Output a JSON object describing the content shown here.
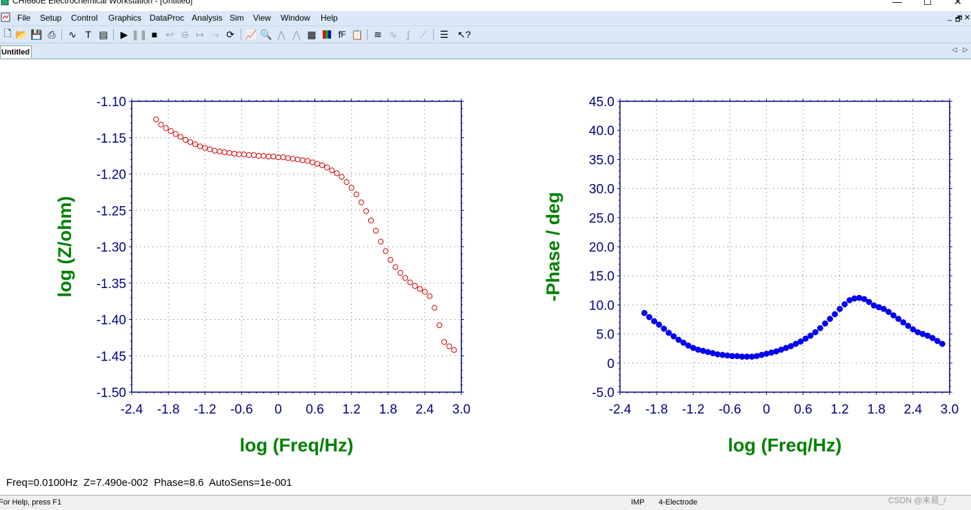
{
  "app": {
    "window_title": "CHI660E Electrochemical Workstation - [Untitled]",
    "minimize_glyph": "—",
    "maximize_glyph": "☐",
    "close_glyph": "✕",
    "mdi_min_glyph": "_",
    "mdi_restore_glyph": "🗗",
    "mdi_close_glyph": "✕"
  },
  "menu": [
    "File",
    "Setup",
    "Control",
    "Graphics",
    "DataProc",
    "Analysis",
    "Sim",
    "View",
    "Window",
    "Help"
  ],
  "toolbar_icons": [
    "new-file-icon",
    "open-file-icon",
    "save-icon",
    "print-icon",
    "technique-icon",
    "text-icon",
    "parameters-icon",
    "run-icon",
    "pause-icon",
    "stop-icon",
    "reverse-icon",
    "ir-comp-icon",
    "filter-icon",
    "cell-icon",
    "rotate-icon",
    "graph-icon",
    "zoom-icon",
    "peak-icon",
    "overlay-icon",
    "color-icon",
    "font-icon",
    "copy-icon",
    "smooth-icon",
    "derivative-icon",
    "integrate-icon",
    "convolution-icon",
    "list-icon",
    "help-pointer-icon"
  ],
  "tab": {
    "label": "Untitled",
    "prev_glyph": "◁",
    "next_glyph": "▷"
  },
  "colors": {
    "menu_bg": "#dbe8f7",
    "axis_color": "#000080",
    "label_green": "#008000",
    "series_red": "#cc0000",
    "series_blue": "#0000ee"
  },
  "status_line": "Freq=0.0100Hz  Z=7.490e-002  Phase=8.6  AutoSens=1e-001",
  "statusbar": {
    "help": "For Help, press F1",
    "mode": "IMP",
    "electrode": "4-Electrode",
    "watermark": "CSDN @末易_/"
  },
  "chart_data": [
    {
      "type": "scatter",
      "xlabel": "log (Freq/Hz)",
      "ylabel": "log (Z/ohm)",
      "xlim": [
        -2.4,
        3.0
      ],
      "ylim": [
        -1.5,
        -1.1
      ],
      "xticks": [
        "-2.4",
        "-1.8",
        "-1.2",
        "-0.6",
        "0",
        "0.6",
        "1.2",
        "1.8",
        "2.4",
        "3.0"
      ],
      "yticks": [
        "-1.10",
        "-1.15",
        "-1.20",
        "-1.25",
        "-1.30",
        "-1.35",
        "-1.40",
        "-1.45",
        "-1.50"
      ],
      "grid": true,
      "marker": "open-circle",
      "color": "#cc0000",
      "x": [
        -2.0,
        -1.92,
        -1.84,
        -1.76,
        -1.68,
        -1.6,
        -1.52,
        -1.44,
        -1.36,
        -1.28,
        -1.2,
        -1.12,
        -1.04,
        -0.96,
        -0.88,
        -0.8,
        -0.72,
        -0.64,
        -0.56,
        -0.48,
        -0.4,
        -0.32,
        -0.24,
        -0.16,
        -0.08,
        0.0,
        0.08,
        0.16,
        0.24,
        0.32,
        0.4,
        0.48,
        0.56,
        0.64,
        0.72,
        0.8,
        0.88,
        0.96,
        1.04,
        1.12,
        1.2,
        1.28,
        1.36,
        1.44,
        1.52,
        1.6,
        1.68,
        1.76,
        1.84,
        1.92,
        2.0,
        2.08,
        2.16,
        2.24,
        2.32,
        2.4,
        2.48,
        2.56,
        2.64,
        2.72,
        2.8,
        2.88
      ],
      "y": [
        -1.125,
        -1.132,
        -1.137,
        -1.141,
        -1.145,
        -1.149,
        -1.153,
        -1.156,
        -1.159,
        -1.162,
        -1.164,
        -1.166,
        -1.168,
        -1.169,
        -1.17,
        -1.171,
        -1.172,
        -1.173,
        -1.173,
        -1.174,
        -1.174,
        -1.175,
        -1.175,
        -1.176,
        -1.176,
        -1.177,
        -1.177,
        -1.178,
        -1.179,
        -1.18,
        -1.181,
        -1.182,
        -1.184,
        -1.186,
        -1.188,
        -1.191,
        -1.195,
        -1.199,
        -1.204,
        -1.211,
        -1.219,
        -1.228,
        -1.239,
        -1.251,
        -1.264,
        -1.278,
        -1.293,
        -1.306,
        -1.318,
        -1.328,
        -1.336,
        -1.343,
        -1.349,
        -1.354,
        -1.358,
        -1.362,
        -1.368,
        -1.384,
        -1.408,
        -1.431,
        -1.437,
        -1.442
      ]
    },
    {
      "type": "scatter",
      "xlabel": "log (Freq/Hz)",
      "ylabel": "-Phase / deg",
      "xlim": [
        -2.4,
        3.0
      ],
      "ylim": [
        -5.0,
        45.0
      ],
      "xticks": [
        "-2.4",
        "-1.8",
        "-1.2",
        "-0.6",
        "0",
        "0.6",
        "1.2",
        "1.8",
        "2.4",
        "3.0"
      ],
      "yticks": [
        "45.0",
        "40.0",
        "35.0",
        "30.0",
        "25.0",
        "20.0",
        "15.0",
        "10.0",
        "5.0",
        "0",
        "-5.0"
      ],
      "grid": true,
      "marker": "filled-circle",
      "color": "#0000ee",
      "x": [
        -2.0,
        -1.92,
        -1.84,
        -1.76,
        -1.68,
        -1.6,
        -1.52,
        -1.44,
        -1.36,
        -1.28,
        -1.2,
        -1.12,
        -1.04,
        -0.96,
        -0.88,
        -0.8,
        -0.72,
        -0.64,
        -0.56,
        -0.48,
        -0.4,
        -0.32,
        -0.24,
        -0.16,
        -0.08,
        0.0,
        0.08,
        0.16,
        0.24,
        0.32,
        0.4,
        0.48,
        0.56,
        0.64,
        0.72,
        0.8,
        0.88,
        0.96,
        1.04,
        1.12,
        1.2,
        1.28,
        1.36,
        1.44,
        1.52,
        1.6,
        1.68,
        1.76,
        1.84,
        1.92,
        2.0,
        2.08,
        2.16,
        2.24,
        2.32,
        2.4,
        2.48,
        2.56,
        2.64,
        2.72,
        2.8,
        2.88
      ],
      "y": [
        8.6,
        7.9,
        7.2,
        6.6,
        5.9,
        5.2,
        4.6,
        4.0,
        3.5,
        3.0,
        2.6,
        2.3,
        2.1,
        1.9,
        1.7,
        1.5,
        1.4,
        1.3,
        1.2,
        1.2,
        1.1,
        1.1,
        1.1,
        1.2,
        1.4,
        1.6,
        1.8,
        2.0,
        2.3,
        2.6,
        2.9,
        3.3,
        3.7,
        4.2,
        4.7,
        5.3,
        6.0,
        6.8,
        7.6,
        8.4,
        9.3,
        10.1,
        10.8,
        11.1,
        11.2,
        11.0,
        10.5,
        9.9,
        9.6,
        9.3,
        8.8,
        8.2,
        7.6,
        7.0,
        6.4,
        5.8,
        5.3,
        5.0,
        4.7,
        4.3,
        3.8,
        3.3
      ]
    }
  ]
}
